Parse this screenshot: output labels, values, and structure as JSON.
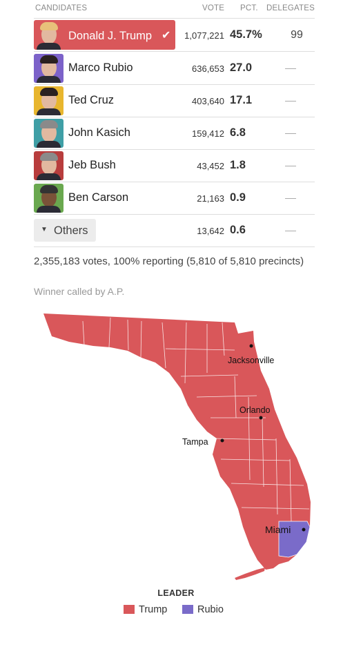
{
  "columns": {
    "candidates": "CANDIDATES",
    "vote": "VOTE",
    "pct": "PCT.",
    "delegates": "DELEGATES"
  },
  "candidates": [
    {
      "name": "Donald J. Trump",
      "votes": "1,077,221",
      "pct": "45.7%",
      "delegates": "99",
      "winner": true,
      "photo_bg": "#d9575a"
    },
    {
      "name": "Marco Rubio",
      "votes": "636,653",
      "pct": "27.0",
      "delegates": "",
      "photo_bg": "#7c62c9"
    },
    {
      "name": "Ted Cruz",
      "votes": "403,640",
      "pct": "17.1",
      "delegates": "",
      "photo_bg": "#e8b62e"
    },
    {
      "name": "John Kasich",
      "votes": "159,412",
      "pct": "6.8",
      "delegates": "",
      "photo_bg": "#3f9fa6"
    },
    {
      "name": "Jeb Bush",
      "votes": "43,452",
      "pct": "1.8",
      "delegates": "",
      "photo_bg": "#b83d3d"
    },
    {
      "name": "Ben Carson",
      "votes": "21,163",
      "pct": "0.9",
      "delegates": "",
      "photo_bg": "#6aa84f"
    }
  ],
  "others": {
    "label": "Others",
    "votes": "13,642",
    "pct": "0.6",
    "delegates": ""
  },
  "summary": "2,355,183 votes, 100% reporting (5,810 of 5,810 precincts)",
  "called": "Winner called by A.P.",
  "map": {
    "cities": [
      "Jacksonville",
      "Orlando",
      "Tampa",
      "Miami"
    ],
    "colors": {
      "trump": "#d9575a",
      "rubio": "#7a6bc9"
    }
  },
  "legend": {
    "title": "LEADER",
    "trump": "Trump",
    "rubio": "Rubio"
  }
}
